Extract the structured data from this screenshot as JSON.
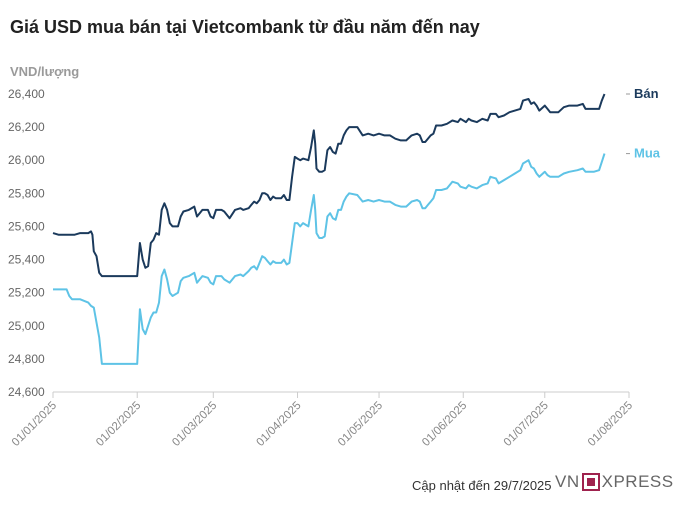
{
  "chart_data": {
    "type": "line",
    "title": "Giá USD mua bán tại Vietcombank từ đầu năm đến nay",
    "ylabel": "VND/lượng",
    "ylim": [
      24600,
      26400
    ],
    "y_ticks": [
      "24,600",
      "24,800",
      "25,000",
      "25,200",
      "25,400",
      "25,600",
      "25,800",
      "26,000",
      "26,200",
      "26,400"
    ],
    "x_ticks": [
      "01/01/2025",
      "01/02/2025",
      "01/03/2025",
      "01/04/2025",
      "01/05/2025",
      "01/06/2025",
      "01/07/2025",
      "01/08/2025"
    ],
    "x_range_days": [
      0,
      212
    ],
    "grid": false,
    "series": [
      {
        "name": "Bán",
        "color": "#1b3a5c",
        "points": [
          [
            0,
            25560
          ],
          [
            2,
            25550
          ],
          [
            5,
            25550
          ],
          [
            8,
            25550
          ],
          [
            10,
            25560
          ],
          [
            13,
            25560
          ],
          [
            14,
            25570
          ],
          [
            14.5,
            25550
          ],
          [
            15,
            25450
          ],
          [
            16,
            25420
          ],
          [
            17,
            25320
          ],
          [
            18,
            25300
          ],
          [
            20,
            25300
          ],
          [
            25,
            25300
          ],
          [
            30,
            25300
          ],
          [
            31,
            25300
          ],
          [
            32,
            25500
          ],
          [
            33,
            25400
          ],
          [
            34,
            25350
          ],
          [
            35,
            25360
          ],
          [
            36,
            25500
          ],
          [
            37,
            25520
          ],
          [
            38,
            25560
          ],
          [
            39,
            25550
          ],
          [
            40,
            25700
          ],
          [
            41,
            25740
          ],
          [
            42,
            25700
          ],
          [
            43,
            25620
          ],
          [
            44,
            25600
          ],
          [
            46,
            25600
          ],
          [
            47,
            25660
          ],
          [
            48,
            25690
          ],
          [
            50,
            25700
          ],
          [
            52,
            25720
          ],
          [
            53,
            25660
          ],
          [
            54,
            25680
          ],
          [
            55,
            25700
          ],
          [
            57,
            25700
          ],
          [
            58,
            25660
          ],
          [
            59,
            25650
          ],
          [
            60,
            25700
          ],
          [
            62,
            25700
          ],
          [
            63,
            25690
          ],
          [
            65,
            25650
          ],
          [
            67,
            25700
          ],
          [
            69,
            25710
          ],
          [
            70,
            25700
          ],
          [
            72,
            25710
          ],
          [
            73,
            25730
          ],
          [
            74,
            25750
          ],
          [
            75,
            25740
          ],
          [
            76,
            25760
          ],
          [
            77,
            25800
          ],
          [
            78,
            25800
          ],
          [
            79,
            25790
          ],
          [
            80,
            25760
          ],
          [
            81,
            25780
          ],
          [
            82,
            25770
          ],
          [
            84,
            25770
          ],
          [
            85,
            25790
          ],
          [
            86,
            25760
          ],
          [
            87,
            25760
          ],
          [
            88,
            25900
          ],
          [
            89,
            26020
          ],
          [
            90,
            26010
          ],
          [
            91,
            26000
          ],
          [
            92,
            26010
          ],
          [
            94,
            26000
          ],
          [
            95,
            26080
          ],
          [
            96,
            26180
          ],
          [
            96.5,
            26100
          ],
          [
            97,
            25950
          ],
          [
            98,
            25930
          ],
          [
            99,
            25930
          ],
          [
            100,
            25940
          ],
          [
            101,
            26060
          ],
          [
            102,
            26080
          ],
          [
            103,
            26050
          ],
          [
            104,
            26040
          ],
          [
            105,
            26100
          ],
          [
            106,
            26100
          ],
          [
            107,
            26150
          ],
          [
            108,
            26180
          ],
          [
            109,
            26200
          ],
          [
            112,
            26200
          ],
          [
            114,
            26150
          ],
          [
            116,
            26160
          ],
          [
            118,
            26150
          ],
          [
            120,
            26160
          ],
          [
            122,
            26150
          ],
          [
            124,
            26150
          ],
          [
            126,
            26130
          ],
          [
            128,
            26120
          ],
          [
            130,
            26120
          ],
          [
            132,
            26150
          ],
          [
            134,
            26160
          ],
          [
            135,
            26150
          ],
          [
            136,
            26110
          ],
          [
            137,
            26110
          ],
          [
            138,
            26130
          ],
          [
            139,
            26150
          ],
          [
            140,
            26160
          ],
          [
            141,
            26210
          ],
          [
            143,
            26210
          ],
          [
            145,
            26220
          ],
          [
            147,
            26240
          ],
          [
            149,
            26230
          ],
          [
            150,
            26250
          ],
          [
            152,
            26230
          ],
          [
            153,
            26250
          ],
          [
            154,
            26240
          ],
          [
            156,
            26230
          ],
          [
            158,
            26250
          ],
          [
            160,
            26240
          ],
          [
            161,
            26280
          ],
          [
            163,
            26280
          ],
          [
            164,
            26260
          ],
          [
            166,
            26270
          ],
          [
            168,
            26290
          ],
          [
            170,
            26300
          ],
          [
            172,
            26310
          ],
          [
            173,
            26360
          ],
          [
            175,
            26370
          ],
          [
            176,
            26340
          ],
          [
            177,
            26350
          ],
          [
            178,
            26330
          ],
          [
            179,
            26300
          ],
          [
            181,
            26330
          ],
          [
            182,
            26310
          ],
          [
            183,
            26290
          ],
          [
            186,
            26290
          ],
          [
            188,
            26320
          ],
          [
            190,
            26330
          ],
          [
            193,
            26330
          ],
          [
            195,
            26340
          ],
          [
            196,
            26310
          ],
          [
            199,
            26310
          ],
          [
            201,
            26310
          ],
          [
            202,
            26360
          ],
          [
            203,
            26400
          ]
        ]
      },
      {
        "name": "Mua",
        "color": "#5ec3e6",
        "points": [
          [
            0,
            25220
          ],
          [
            2,
            25220
          ],
          [
            5,
            25220
          ],
          [
            6,
            25180
          ],
          [
            7,
            25160
          ],
          [
            10,
            25160
          ],
          [
            13,
            25140
          ],
          [
            14,
            25120
          ],
          [
            15,
            25110
          ],
          [
            16,
            25020
          ],
          [
            17,
            24930
          ],
          [
            18,
            24770
          ],
          [
            25,
            24770
          ],
          [
            31,
            24770
          ],
          [
            32,
            25100
          ],
          [
            33,
            24980
          ],
          [
            34,
            24950
          ],
          [
            35,
            25000
          ],
          [
            36,
            25050
          ],
          [
            37,
            25080
          ],
          [
            38,
            25080
          ],
          [
            39,
            25140
          ],
          [
            40,
            25300
          ],
          [
            41,
            25340
          ],
          [
            42,
            25280
          ],
          [
            43,
            25200
          ],
          [
            44,
            25180
          ],
          [
            46,
            25200
          ],
          [
            47,
            25270
          ],
          [
            48,
            25290
          ],
          [
            50,
            25300
          ],
          [
            52,
            25320
          ],
          [
            53,
            25260
          ],
          [
            54,
            25280
          ],
          [
            55,
            25300
          ],
          [
            57,
            25290
          ],
          [
            58,
            25260
          ],
          [
            59,
            25250
          ],
          [
            60,
            25300
          ],
          [
            62,
            25300
          ],
          [
            63,
            25280
          ],
          [
            65,
            25260
          ],
          [
            67,
            25300
          ],
          [
            69,
            25310
          ],
          [
            70,
            25300
          ],
          [
            72,
            25330
          ],
          [
            73,
            25350
          ],
          [
            74,
            25360
          ],
          [
            75,
            25340
          ],
          [
            76,
            25380
          ],
          [
            77,
            25420
          ],
          [
            78,
            25410
          ],
          [
            79,
            25390
          ],
          [
            80,
            25370
          ],
          [
            81,
            25390
          ],
          [
            82,
            25380
          ],
          [
            84,
            25380
          ],
          [
            85,
            25400
          ],
          [
            86,
            25370
          ],
          [
            87,
            25380
          ],
          [
            88,
            25500
          ],
          [
            89,
            25620
          ],
          [
            90,
            25620
          ],
          [
            91,
            25600
          ],
          [
            92,
            25620
          ],
          [
            94,
            25600
          ],
          [
            95,
            25700
          ],
          [
            96,
            25790
          ],
          [
            96.5,
            25700
          ],
          [
            97,
            25560
          ],
          [
            98,
            25530
          ],
          [
            99,
            25530
          ],
          [
            100,
            25540
          ],
          [
            101,
            25660
          ],
          [
            102,
            25680
          ],
          [
            103,
            25650
          ],
          [
            104,
            25640
          ],
          [
            105,
            25700
          ],
          [
            106,
            25700
          ],
          [
            107,
            25750
          ],
          [
            108,
            25780
          ],
          [
            109,
            25800
          ],
          [
            112,
            25790
          ],
          [
            114,
            25750
          ],
          [
            116,
            25760
          ],
          [
            118,
            25750
          ],
          [
            120,
            25760
          ],
          [
            122,
            25750
          ],
          [
            124,
            25750
          ],
          [
            126,
            25730
          ],
          [
            128,
            25720
          ],
          [
            130,
            25720
          ],
          [
            132,
            25750
          ],
          [
            134,
            25760
          ],
          [
            135,
            25750
          ],
          [
            136,
            25710
          ],
          [
            137,
            25710
          ],
          [
            138,
            25730
          ],
          [
            139,
            25750
          ],
          [
            140,
            25770
          ],
          [
            141,
            25820
          ],
          [
            143,
            25820
          ],
          [
            145,
            25830
          ],
          [
            147,
            25870
          ],
          [
            149,
            25860
          ],
          [
            150,
            25840
          ],
          [
            152,
            25830
          ],
          [
            153,
            25850
          ],
          [
            154,
            25840
          ],
          [
            156,
            25830
          ],
          [
            158,
            25850
          ],
          [
            160,
            25860
          ],
          [
            161,
            25900
          ],
          [
            163,
            25890
          ],
          [
            164,
            25860
          ],
          [
            166,
            25880
          ],
          [
            168,
            25900
          ],
          [
            170,
            25920
          ],
          [
            172,
            25940
          ],
          [
            173,
            25980
          ],
          [
            175,
            26000
          ],
          [
            176,
            25960
          ],
          [
            177,
            25950
          ],
          [
            178,
            25920
          ],
          [
            179,
            25900
          ],
          [
            181,
            25930
          ],
          [
            182,
            25910
          ],
          [
            183,
            25900
          ],
          [
            186,
            25900
          ],
          [
            188,
            25920
          ],
          [
            190,
            25930
          ],
          [
            193,
            25940
          ],
          [
            195,
            25950
          ],
          [
            196,
            25930
          ],
          [
            199,
            25930
          ],
          [
            201,
            25940
          ],
          [
            202,
            25990
          ],
          [
            203,
            26040
          ]
        ]
      }
    ]
  },
  "footer": {
    "updated": "Cập nhật đến 29/7/2025",
    "logo_left": "VN",
    "logo_right": "XPRESS",
    "logo_color": "#9f224e"
  }
}
